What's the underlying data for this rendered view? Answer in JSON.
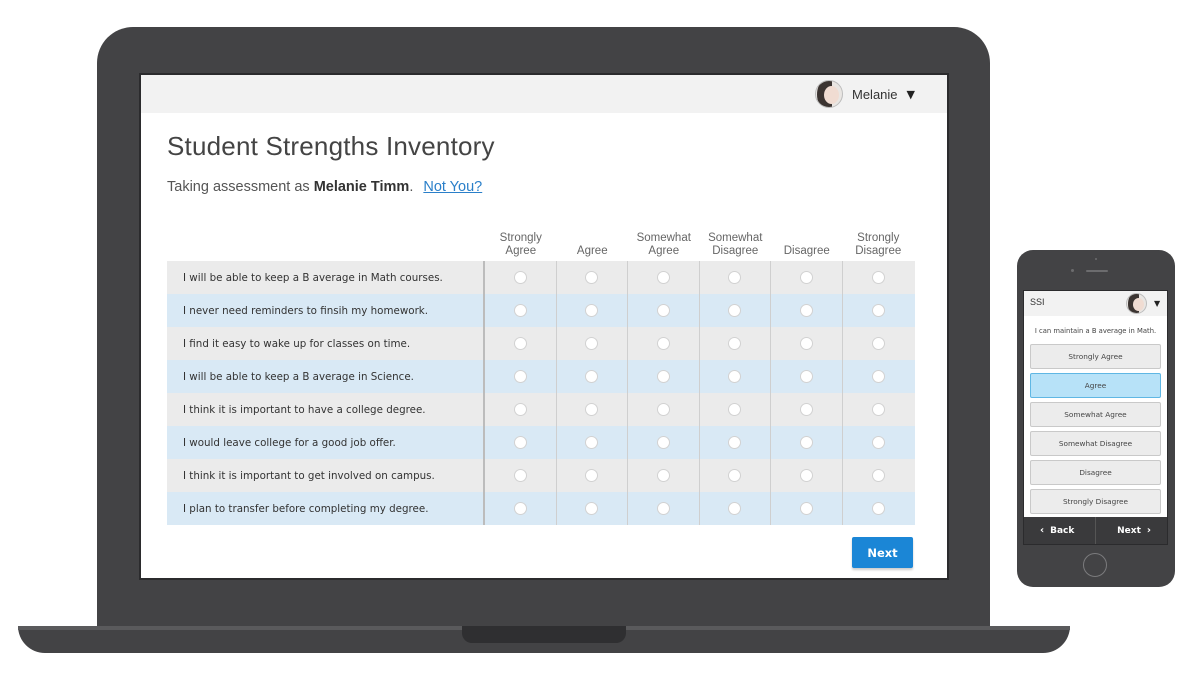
{
  "header": {
    "user_name": "Melanie",
    "caret": "▼"
  },
  "page": {
    "title": "Student Strengths Inventory",
    "subtitle_prefix": "Taking assessment as ",
    "subtitle_user": "Melanie Timm",
    "subtitle_suffix": ".",
    "not_you_link": "Not You?"
  },
  "table": {
    "columns": [
      [
        "Strongly",
        "Agree"
      ],
      [
        "",
        "Agree"
      ],
      [
        "Somewhat",
        "Agree"
      ],
      [
        "Somewhat",
        "Disagree"
      ],
      [
        "",
        "Disagree"
      ],
      [
        "Strongly",
        "Disagree"
      ]
    ],
    "questions": [
      "I will be able to keep a B average in Math courses.",
      "I never need reminders to finsih my homework.",
      "I find it easy to wake up for classes on time.",
      "I will be able to keep a B average in Science.",
      "I think it is important to have a college degree.",
      "I would leave college for a good job offer.",
      "I think it is important to get involved on campus.",
      "I plan to transfer before completing my degree."
    ]
  },
  "actions": {
    "next_label": "Next"
  },
  "phone": {
    "title": "SSI",
    "caret": "▼",
    "question": "I can maintain a B average in Math.",
    "options": [
      "Strongly Agree",
      "Agree",
      "Somewhat Agree",
      "Somewhat Disagree",
      "Disagree",
      "Strongly Disagree"
    ],
    "selected_option": "Agree",
    "back_label": "Back",
    "next_label": "Next",
    "back_chevron": "‹",
    "next_chevron": "›"
  },
  "colors": {
    "accent": "#1b86d6",
    "row_alt": "#d9e9f5",
    "row_base": "#ebebeb",
    "selected_option": "#b7e2f8",
    "device_body": "#434345"
  },
  "icons": {
    "user_avatar": "avatar-icon",
    "dropdown": "caret-down-icon",
    "back": "chevron-left-icon",
    "next": "chevron-right-icon"
  }
}
